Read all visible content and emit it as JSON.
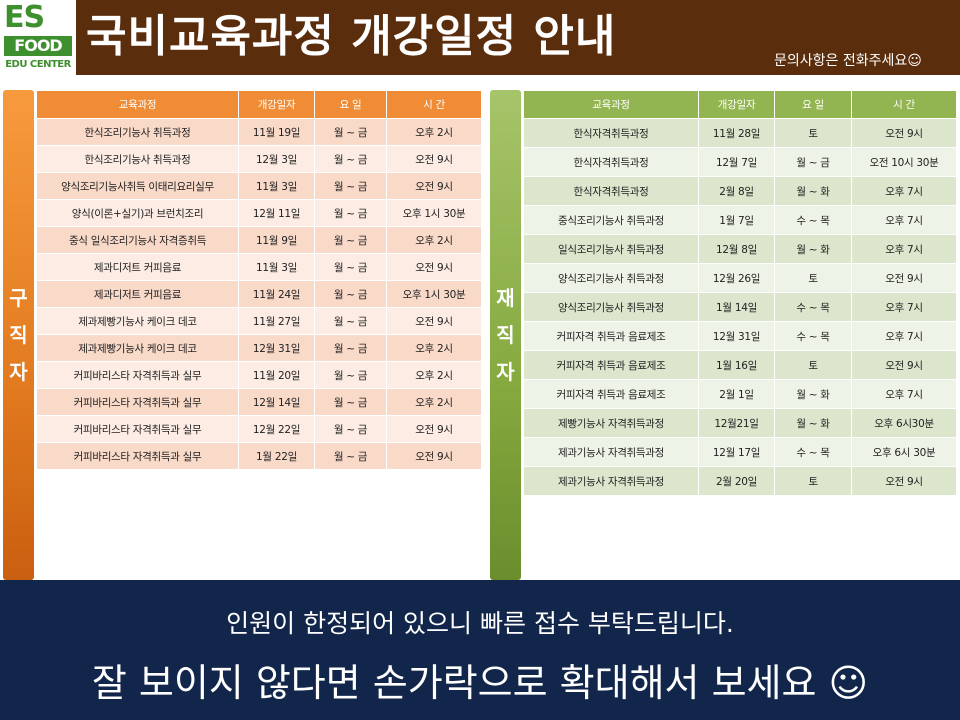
{
  "logo": {
    "top": "ES",
    "middle": "FOOD",
    "bottom": "EDU CENTER"
  },
  "title": "국비교육과정 개강일정 안내",
  "contact": "문의사항은 전화주세요☺",
  "left_section": {
    "tab_label": [
      "구",
      "직",
      "자"
    ],
    "headers": [
      "교육과정",
      "개강일자",
      "요 일",
      "시 간"
    ],
    "rows": [
      [
        "한식조리기능사 취득과정",
        "11월 19일",
        "월 ~ 금",
        "오후 2시"
      ],
      [
        "한식조리기능사 취득과정",
        "12월 3일",
        "월 ~ 금",
        "오전 9시"
      ],
      [
        "양식조리기능사취득 이태리요리실무",
        "11월 3일",
        "월 ~ 금",
        "오전 9시"
      ],
      [
        "양식(이론+실기)과 브런치조리",
        "12월 11일",
        "월 ~ 금",
        "오후 1시 30분"
      ],
      [
        "중식 일식조리기능사 자격증취득",
        "11월 9일",
        "월 ~ 금",
        "오후 2시"
      ],
      [
        "제과디저트 커피음료",
        "11월 3일",
        "월 ~ 금",
        "오전 9시"
      ],
      [
        "제과디저트 커피음료",
        "11월 24일",
        "월 ~ 금",
        "오후 1시 30분"
      ],
      [
        "제과제빵기능사 케이크 데코",
        "11월 27일",
        "월 ~ 금",
        "오전 9시"
      ],
      [
        "제과제빵기능사 케이크 데코",
        "12월 31일",
        "월 ~ 금",
        "오후 2시"
      ],
      [
        "커피바리스타 자격취득과 실무",
        "11월 20일",
        "월 ~ 금",
        "오후 2시"
      ],
      [
        "커피바리스타 자격취득과 실무",
        "12월 14일",
        "월 ~ 금",
        "오후 2시"
      ],
      [
        "커피바리스타 자격취득과 실무",
        "12월 22일",
        "월 ~ 금",
        "오전 9시"
      ],
      [
        "커피바리스타 자격취득과 실무",
        "1월 22일",
        "월 ~ 금",
        "오전 9시"
      ]
    ]
  },
  "right_section": {
    "tab_label": [
      "재",
      "직",
      "자"
    ],
    "headers": [
      "교육과정",
      "개강일자",
      "요 일",
      "시 간"
    ],
    "rows": [
      [
        "한식자격취득과정",
        "11월 28일",
        "토",
        "오전 9시"
      ],
      [
        "한식자격취득과정",
        "12월 7일",
        "월 ~ 금",
        "오전 10시 30분"
      ],
      [
        "한식자격취득과정",
        "2월 8일",
        "월 ~ 화",
        "오후 7시"
      ],
      [
        "중식조리기능사 취득과정",
        "1월 7일",
        "수 ~ 목",
        "오후 7시"
      ],
      [
        "일식조리기능사 취득과정",
        "12월 8일",
        "월 ~ 화",
        "오후 7시"
      ],
      [
        "양식조리기능사 취득과정",
        "12월 26일",
        "토",
        "오전 9시"
      ],
      [
        "양식조리기능사 취득과정",
        "1월 14일",
        "수 ~ 목",
        "오후 7시"
      ],
      [
        "커피자격 취득과 음료제조",
        "12월 31일",
        "수 ~ 목",
        "오후 7시"
      ],
      [
        "커피자격 취득과 음료제조",
        "1월 16일",
        "토",
        "오전 9시"
      ],
      [
        "커피자격 취득과 음료제조",
        "2월 1일",
        "월 ~ 화",
        "오후 7시"
      ],
      [
        "제빵기능사 자격취득과정",
        "12월21일",
        "월 ~ 화",
        "오후 6시30분"
      ],
      [
        "제과기능사 자격취득과정",
        "12월 17일",
        "수 ~ 목",
        "오후 6시 30분"
      ],
      [
        "제과기능사 자격취득과정",
        "2월 20일",
        "토",
        "오전 9시"
      ]
    ]
  },
  "footer": {
    "line1": "인원이 한정되어 있으니 빠른 접수 부탁드립니다.",
    "line2": "잘 보이지 않다면 손가락으로 확대해서 보세요 ☺"
  }
}
